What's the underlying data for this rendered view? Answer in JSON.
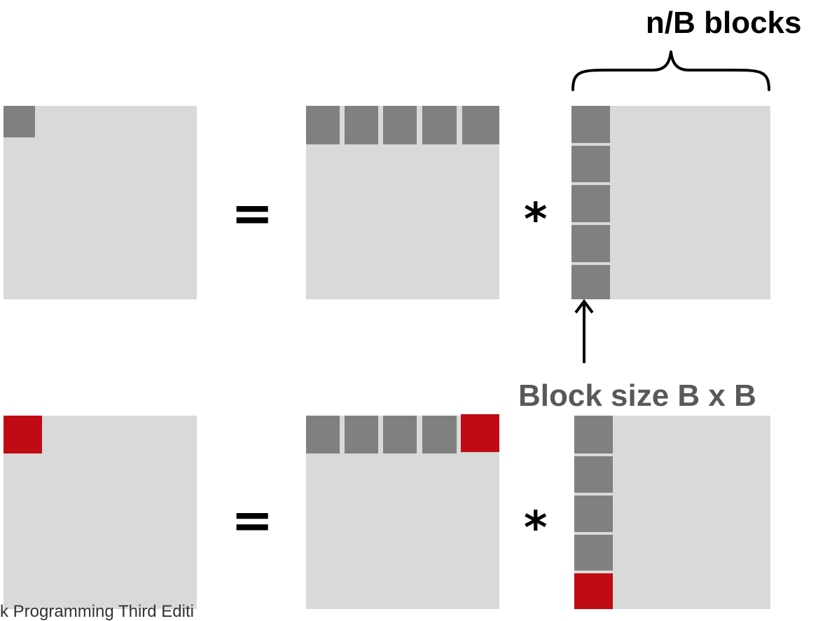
{
  "colors": {
    "matrix_bg": "#d9d9d9",
    "block": "#808080",
    "highlight": "#c00a14",
    "separator": "#ffffff",
    "label_dark": "#000000",
    "label_gray": "#595959"
  },
  "labels": {
    "n_blocks": "n/B blocks",
    "block_size": "Block size B x B",
    "equals": "=",
    "multiply": "*",
    "footer": "k Programming Third Editi"
  },
  "rows": [
    {
      "name": "top-row",
      "highlight_blocks": false,
      "blocks_per_strip": 5
    },
    {
      "name": "bottom-row",
      "highlight_blocks": true,
      "blocks_per_strip": 5
    }
  ]
}
